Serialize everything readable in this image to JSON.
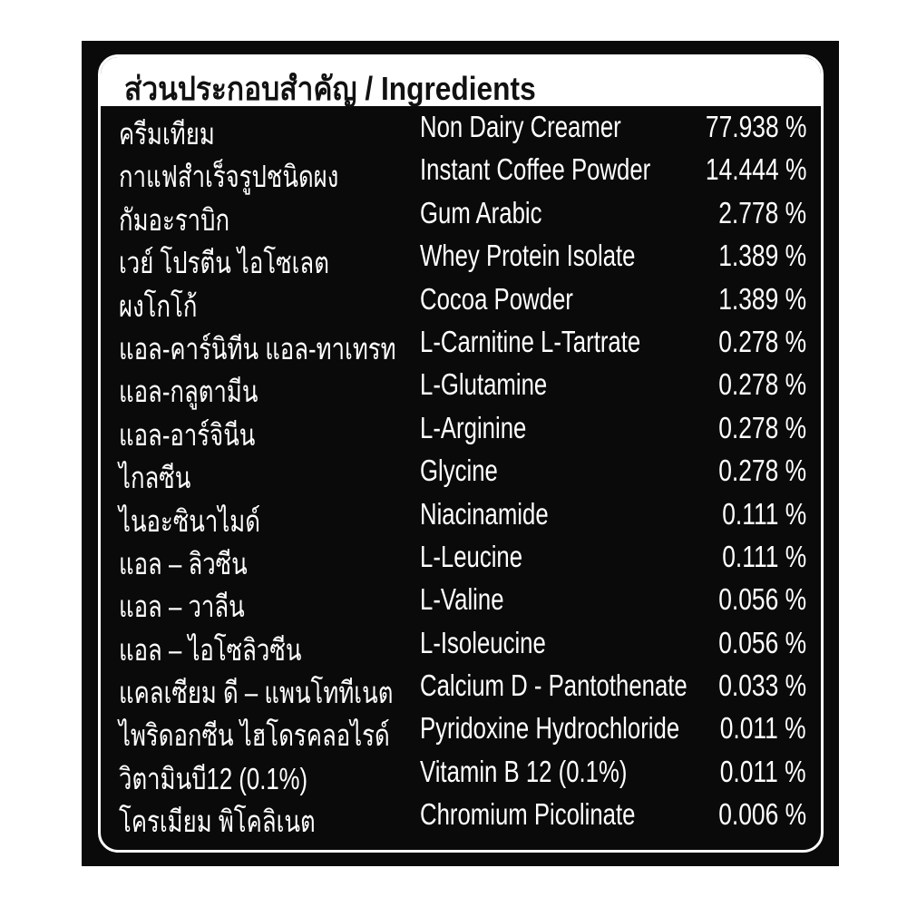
{
  "title": "ส่วนประกอบสำคัญ / Ingredients",
  "ingredients": [
    {
      "thai": "ครีมเทียม",
      "english": "Non Dairy Creamer",
      "percent": "77.938 %"
    },
    {
      "thai": "กาแฟสำเร็จรูปชนิดผง",
      "english": "Instant Coffee Powder",
      "percent": "14.444 %"
    },
    {
      "thai": "กัมอะราบิก",
      "english": "Gum Arabic",
      "percent": "2.778 %"
    },
    {
      "thai": "เวย์ โปรตีน ไอโซเลต",
      "english": "Whey Protein Isolate",
      "percent": "1.389 %"
    },
    {
      "thai": "ผงโกโก้",
      "english": "Cocoa Powder",
      "percent": "1.389 %"
    },
    {
      "thai": "แอล-คาร์นิทีน แอล-ทาเทรท",
      "english": "L-Carnitine L-Tartrate",
      "percent": "0.278 %"
    },
    {
      "thai": "แอล-กลูตามีน",
      "english": "L-Glutamine",
      "percent": "0.278 %"
    },
    {
      "thai": "แอล-อาร์จินีน",
      "english": "L-Arginine",
      "percent": "0.278 %"
    },
    {
      "thai": "ไกลซีน",
      "english": "Glycine",
      "percent": "0.278 %"
    },
    {
      "thai": "ไนอะซินาไมด์",
      "english": "Niacinamide",
      "percent": "0.111 %"
    },
    {
      "thai": "แอล – ลิวซีน",
      "english": "L-Leucine",
      "percent": "0.111 %"
    },
    {
      "thai": "แอล – วาลีน",
      "english": "L-Valine",
      "percent": "0.056 %"
    },
    {
      "thai": "แอล – ไอโซลิวซีน",
      "english": "L-Isoleucine",
      "percent": "0.056 %"
    },
    {
      "thai": "แคลเซียม ดี – แพนโททีเนต",
      "english": "Calcium D - Pantothenate",
      "percent": "0.033 %"
    },
    {
      "thai": "ไพริดอกซีน ไฮโดรคลอไรด์",
      "english": "Pyridoxine Hydrochloride",
      "percent": "0.011 %"
    },
    {
      "thai": "วิตามินบี12 (0.1%)",
      "english": "Vitamin B 12 (0.1%)",
      "percent": "0.011 %"
    },
    {
      "thai": "โครเมียม พิโคลิเนต",
      "english": "Chromium Picolinate",
      "percent": "0.006 %"
    }
  ]
}
